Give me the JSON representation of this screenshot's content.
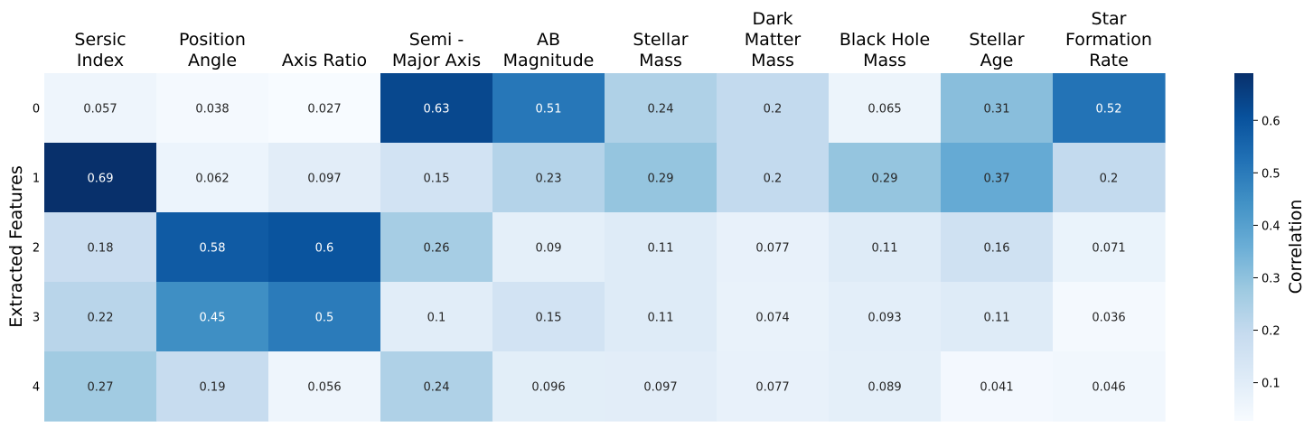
{
  "chart_data": {
    "type": "heatmap",
    "columns": [
      [
        "Sersic",
        "Index"
      ],
      [
        "Position",
        "Angle"
      ],
      [
        "Axis Ratio"
      ],
      [
        "Semi -",
        "Major Axis"
      ],
      [
        "AB",
        "Magnitude"
      ],
      [
        "Stellar",
        "Mass"
      ],
      [
        "Dark",
        "Matter",
        "Mass"
      ],
      [
        "Black Hole",
        "Mass"
      ],
      [
        "Stellar",
        "Age"
      ],
      [
        "Star",
        "Formation",
        "Rate"
      ]
    ],
    "rows": [
      "0",
      "1",
      "2",
      "3",
      "4"
    ],
    "values": [
      [
        0.057,
        0.038,
        0.027,
        0.63,
        0.51,
        0.24,
        0.2,
        0.065,
        0.31,
        0.52
      ],
      [
        0.69,
        0.062,
        0.097,
        0.15,
        0.23,
        0.29,
        0.2,
        0.29,
        0.37,
        0.2
      ],
      [
        0.18,
        0.58,
        0.6,
        0.26,
        0.09,
        0.11,
        0.077,
        0.11,
        0.16,
        0.071
      ],
      [
        0.22,
        0.45,
        0.5,
        0.1,
        0.15,
        0.11,
        0.074,
        0.093,
        0.11,
        0.036
      ],
      [
        0.27,
        0.19,
        0.056,
        0.24,
        0.096,
        0.097,
        0.077,
        0.089,
        0.041,
        0.046
      ]
    ],
    "value_labels": [
      [
        "0.057",
        "0.038",
        "0.027",
        "0.63",
        "0.51",
        "0.24",
        "0.2",
        "0.065",
        "0.31",
        "0.52"
      ],
      [
        "0.69",
        "0.062",
        "0.097",
        "0.15",
        "0.23",
        "0.29",
        "0.2",
        "0.29",
        "0.37",
        "0.2"
      ],
      [
        "0.18",
        "0.58",
        "0.6",
        "0.26",
        "0.09",
        "0.11",
        "0.077",
        "0.11",
        "0.16",
        "0.071"
      ],
      [
        "0.22",
        "0.45",
        "0.5",
        "0.1",
        "0.15",
        "0.11",
        "0.074",
        "0.093",
        "0.11",
        "0.036"
      ],
      [
        "0.27",
        "0.19",
        "0.056",
        "0.24",
        "0.096",
        "0.097",
        "0.077",
        "0.089",
        "0.041",
        "0.046"
      ]
    ],
    "ylabel": "Extracted Features",
    "colorbar": {
      "label": "Correlation",
      "range": [
        0.027,
        0.69
      ],
      "ticks": [
        0.1,
        0.2,
        0.3,
        0.4,
        0.5,
        0.6
      ],
      "tick_labels": [
        "0.1",
        "0.2",
        "0.3",
        "0.4",
        "0.5",
        "0.6"
      ],
      "colormap": "Blues"
    },
    "column_label_position": "top",
    "colors": {
      "low": "#f7fbff",
      "high": "#08306b",
      "text_dark": "#262626",
      "text_light": "#ffffff"
    }
  }
}
